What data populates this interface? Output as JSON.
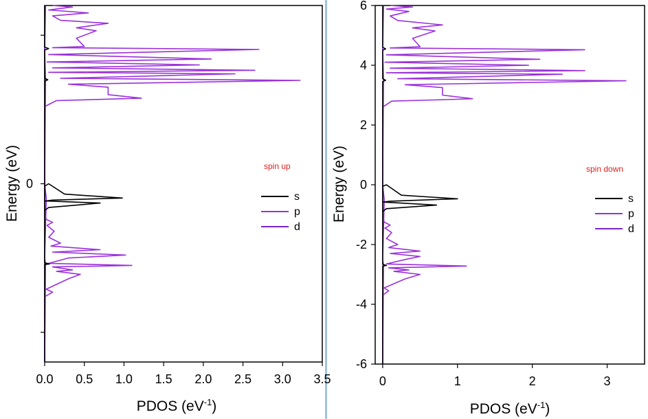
{
  "chart_data": [
    {
      "type": "line",
      "orientation": "horizontal-curves",
      "xlabel": "PDOS (eV",
      "xlabel_sup": "-1",
      "xlabel_close": ")",
      "ylabel": "Energy (eV)",
      "xlim": [
        0,
        3.5
      ],
      "ylim": [
        -6,
        6
      ],
      "x_ticks": [
        "0.0",
        "0.5",
        "1.0",
        "1.5",
        "2.0",
        "2.5",
        "3.0",
        "3.5"
      ],
      "x_tick_values": [
        0,
        0.5,
        1.0,
        1.5,
        2.0,
        2.5,
        3.0,
        3.5
      ],
      "y_ticks": [
        "0"
      ],
      "y_tick_values": [
        0
      ],
      "y_tick_marks": [
        -5,
        0,
        5
      ],
      "annotation": "spin up",
      "legend": [
        "s",
        "p",
        "d"
      ],
      "legend_position": "right-middle",
      "series": [
        {
          "name": "s",
          "color": "#000000",
          "points": [
            [
              0.0,
              -6.0
            ],
            [
              0.0,
              -2.72
            ],
            [
              0.06,
              -2.7
            ],
            [
              0.0,
              -2.66
            ],
            [
              0.0,
              -0.08
            ],
            [
              0.05,
              0.0
            ],
            [
              0.25,
              -0.35
            ],
            [
              0.98,
              -0.48
            ],
            [
              0.1,
              -0.55
            ],
            [
              0.01,
              -0.58
            ],
            [
              0.7,
              -0.65
            ],
            [
              0.05,
              -0.8
            ],
            [
              0.0,
              -0.9
            ],
            [
              0.0,
              3.45
            ],
            [
              0.04,
              3.5
            ],
            [
              0.0,
              3.55
            ],
            [
              0.0,
              4.5
            ],
            [
              0.05,
              4.55
            ],
            [
              0.0,
              4.6
            ],
            [
              0.0,
              6.0
            ]
          ]
        },
        {
          "name": "p",
          "color": "#9b30d9",
          "points": [
            [
              0.0,
              -6.0
            ],
            [
              0.0,
              -3.8
            ],
            [
              0.1,
              -3.65
            ],
            [
              0.02,
              -3.55
            ],
            [
              0.3,
              -3.2
            ],
            [
              0.45,
              -3.05
            ],
            [
              0.15,
              -2.95
            ],
            [
              0.35,
              -2.9
            ],
            [
              0.1,
              -2.8
            ],
            [
              1.1,
              -2.75
            ],
            [
              0.05,
              -2.68
            ],
            [
              0.3,
              -2.5
            ],
            [
              1.02,
              -2.4
            ],
            [
              0.1,
              -2.3
            ],
            [
              0.7,
              -2.22
            ],
            [
              0.08,
              -2.1
            ],
            [
              0.2,
              -2.0
            ],
            [
              0.05,
              -1.8
            ],
            [
              0.12,
              -1.6
            ],
            [
              0.03,
              -1.4
            ],
            [
              0.1,
              -1.3
            ],
            [
              0.02,
              -1.2
            ],
            [
              0.0,
              -1.0
            ],
            [
              0.0,
              2.6
            ],
            [
              0.15,
              2.8
            ],
            [
              0.85,
              2.85
            ],
            [
              1.22,
              2.88
            ],
            [
              0.8,
              3.0
            ],
            [
              0.8,
              3.25
            ],
            [
              0.3,
              3.35
            ],
            [
              3.22,
              3.48
            ],
            [
              0.2,
              3.55
            ],
            [
              2.4,
              3.7
            ],
            [
              0.05,
              3.75
            ],
            [
              2.65,
              3.82
            ],
            [
              0.1,
              3.9
            ],
            [
              1.95,
              4.0
            ],
            [
              0.03,
              4.1
            ],
            [
              2.1,
              4.2
            ],
            [
              0.05,
              4.35
            ],
            [
              2.7,
              4.52
            ],
            [
              0.1,
              4.58
            ],
            [
              0.5,
              4.62
            ],
            [
              0.4,
              4.9
            ],
            [
              0.65,
              5.15
            ],
            [
              0.4,
              5.25
            ],
            [
              0.8,
              5.4
            ],
            [
              0.2,
              5.5
            ],
            [
              0.1,
              5.65
            ],
            [
              0.55,
              5.75
            ],
            [
              0.05,
              5.85
            ],
            [
              0.35,
              5.95
            ],
            [
              0.1,
              6.0
            ]
          ]
        },
        {
          "name": "d",
          "color": "#7a22d4",
          "points": [
            [
              0.0,
              -6.0
            ],
            [
              0.01,
              -2.7
            ],
            [
              0.0,
              -2.5
            ],
            [
              0.02,
              -0.5
            ],
            [
              0.0,
              0.0
            ],
            [
              0.01,
              3.5
            ],
            [
              0.0,
              4.5
            ],
            [
              0.01,
              6.0
            ]
          ]
        }
      ]
    },
    {
      "type": "line",
      "orientation": "horizontal-curves",
      "xlabel": "PDOS (eV",
      "xlabel_sup": "-1",
      "xlabel_close": ")",
      "ylabel": "Energy (eV)",
      "xlim": [
        -0.1,
        3.5
      ],
      "ylim": [
        -6,
        6
      ],
      "x_ticks": [
        "0",
        "1",
        "2",
        "3"
      ],
      "x_tick_values": [
        0,
        1,
        2,
        3
      ],
      "y_ticks": [
        "6",
        "4",
        "2",
        "0",
        "-2",
        "-4",
        "-6"
      ],
      "y_tick_values": [
        6,
        4,
        2,
        0,
        -2,
        -4,
        -6
      ],
      "annotation": "spin down",
      "legend": [
        "s",
        "p",
        "d"
      ],
      "legend_position": "right-middle",
      "series": [
        {
          "name": "s",
          "color": "#000000",
          "points": [
            [
              0.0,
              -6.0
            ],
            [
              0.0,
              -2.72
            ],
            [
              0.05,
              -2.7
            ],
            [
              0.0,
              -2.66
            ],
            [
              0.0,
              -0.05
            ],
            [
              0.05,
              0.0
            ],
            [
              0.25,
              -0.35
            ],
            [
              1.0,
              -0.47
            ],
            [
              0.1,
              -0.55
            ],
            [
              0.01,
              -0.58
            ],
            [
              0.72,
              -0.68
            ],
            [
              0.05,
              -0.8
            ],
            [
              0.0,
              -0.9
            ],
            [
              0.0,
              3.45
            ],
            [
              0.04,
              3.5
            ],
            [
              0.0,
              3.55
            ],
            [
              0.0,
              4.5
            ],
            [
              0.04,
              4.55
            ],
            [
              0.0,
              4.6
            ],
            [
              0.0,
              6.0
            ]
          ]
        },
        {
          "name": "p",
          "color": "#9b30d9",
          "points": [
            [
              0.0,
              -6.0
            ],
            [
              0.0,
              -3.7
            ],
            [
              0.08,
              -3.55
            ],
            [
              0.02,
              -3.45
            ],
            [
              0.3,
              -3.15
            ],
            [
              0.5,
              -3.0
            ],
            [
              0.15,
              -2.9
            ],
            [
              0.35,
              -2.85
            ],
            [
              0.08,
              -2.78
            ],
            [
              1.12,
              -2.72
            ],
            [
              0.05,
              -2.65
            ],
            [
              0.3,
              -2.5
            ],
            [
              0.5,
              -2.4
            ],
            [
              0.1,
              -2.3
            ],
            [
              0.5,
              -2.22
            ],
            [
              0.08,
              -2.1
            ],
            [
              0.2,
              -2.0
            ],
            [
              0.05,
              -1.8
            ],
            [
              0.12,
              -1.6
            ],
            [
              0.03,
              -1.45
            ],
            [
              0.1,
              -1.35
            ],
            [
              0.02,
              -1.25
            ],
            [
              0.0,
              -1.0
            ],
            [
              0.0,
              2.6
            ],
            [
              0.12,
              2.8
            ],
            [
              0.85,
              2.85
            ],
            [
              1.2,
              2.88
            ],
            [
              0.8,
              3.0
            ],
            [
              0.8,
              3.25
            ],
            [
              0.3,
              3.35
            ],
            [
              3.25,
              3.48
            ],
            [
              0.2,
              3.55
            ],
            [
              2.4,
              3.7
            ],
            [
              0.05,
              3.75
            ],
            [
              2.7,
              3.82
            ],
            [
              0.1,
              3.9
            ],
            [
              1.95,
              4.0
            ],
            [
              0.03,
              4.1
            ],
            [
              2.1,
              4.2
            ],
            [
              0.05,
              4.35
            ],
            [
              2.7,
              4.52
            ],
            [
              0.1,
              4.58
            ],
            [
              0.5,
              4.62
            ],
            [
              0.4,
              4.9
            ],
            [
              0.7,
              5.15
            ],
            [
              0.4,
              5.25
            ],
            [
              0.8,
              5.35
            ],
            [
              0.2,
              5.5
            ],
            [
              0.1,
              5.65
            ],
            [
              0.35,
              5.8
            ],
            [
              0.05,
              5.88
            ],
            [
              0.4,
              5.95
            ],
            [
              0.1,
              6.0
            ]
          ]
        },
        {
          "name": "d",
          "color": "#7a22d4",
          "points": [
            [
              0.0,
              -6.0
            ],
            [
              0.01,
              -2.7
            ],
            [
              0.0,
              -2.5
            ],
            [
              0.02,
              -0.5
            ],
            [
              0.0,
              0.0
            ],
            [
              0.01,
              3.5
            ],
            [
              0.0,
              4.5
            ],
            [
              0.01,
              6.0
            ]
          ]
        }
      ]
    }
  ]
}
